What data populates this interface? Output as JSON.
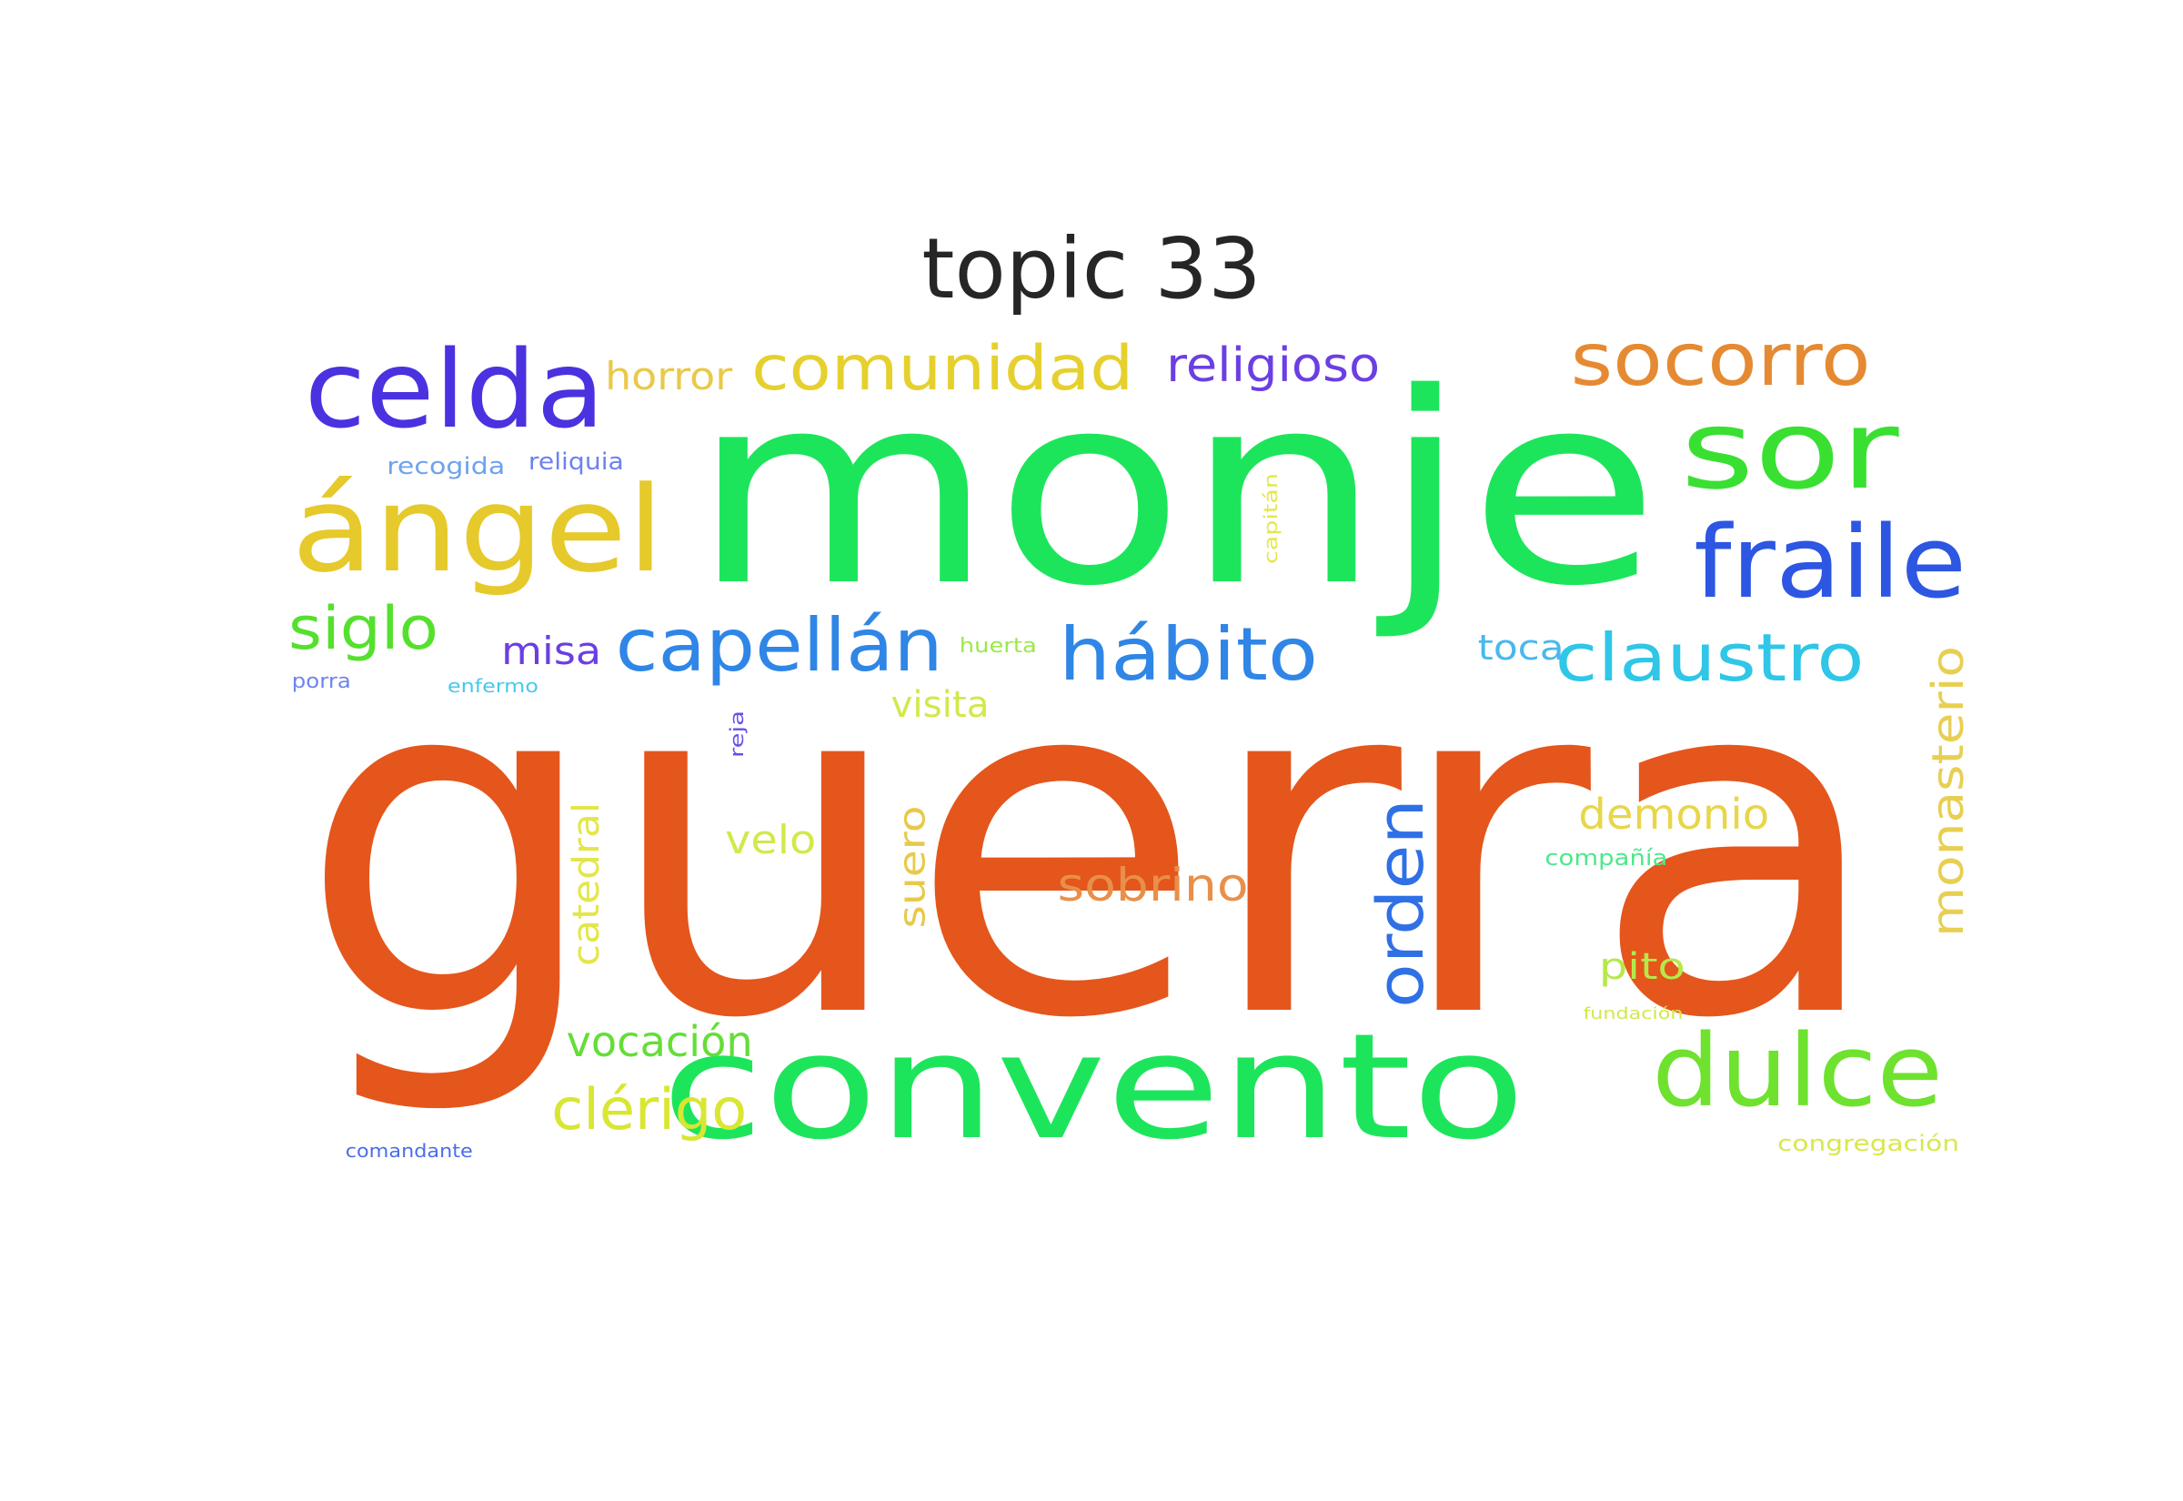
{
  "figure": {
    "title": "topic 33"
  },
  "wordcloud": {
    "words": [
      {
        "text": "guerra",
        "color": "#e4561c",
        "rotate": false
      },
      {
        "text": "monje",
        "color": "#1de55b",
        "rotate": false
      },
      {
        "text": "convento",
        "color": "#1de55b",
        "rotate": false
      },
      {
        "text": "celda",
        "color": "#4a32e0",
        "rotate": false
      },
      {
        "text": "ángel",
        "color": "#e6c92b",
        "rotate": false
      },
      {
        "text": "sor",
        "color": "#39e031",
        "rotate": false
      },
      {
        "text": "fraile",
        "color": "#2d56e3",
        "rotate": false
      },
      {
        "text": "socorro",
        "color": "#e58a32",
        "rotate": false
      },
      {
        "text": "dulce",
        "color": "#6ee22e",
        "rotate": false
      },
      {
        "text": "claustro",
        "color": "#2fc6e8",
        "rotate": false
      },
      {
        "text": "hábito",
        "color": "#2f86e6",
        "rotate": false
      },
      {
        "text": "capellán",
        "color": "#2f86e6",
        "rotate": false
      },
      {
        "text": "comunidad",
        "color": "#e6d02e",
        "rotate": false
      },
      {
        "text": "siglo",
        "color": "#55e02d",
        "rotate": false
      },
      {
        "text": "religioso",
        "color": "#6b3fe3",
        "rotate": false
      },
      {
        "text": "orden",
        "color": "#2f70e6",
        "rotate": true
      },
      {
        "text": "monasterio",
        "color": "#e8cf52",
        "rotate": true
      },
      {
        "text": "clérigo",
        "color": "#d9e632",
        "rotate": false
      },
      {
        "text": "sobrino",
        "color": "#e8904a",
        "rotate": false
      },
      {
        "text": "vocación",
        "color": "#63de37",
        "rotate": false
      },
      {
        "text": "demonio",
        "color": "#e8d64a",
        "rotate": false
      },
      {
        "text": "horror",
        "color": "#e8c94a",
        "rotate": false
      },
      {
        "text": "misa",
        "color": "#6b3fe3",
        "rotate": false
      },
      {
        "text": "toca",
        "color": "#49b8ee",
        "rotate": false
      },
      {
        "text": "velo",
        "color": "#d3e84a",
        "rotate": false
      },
      {
        "text": "visita",
        "color": "#d3e84a",
        "rotate": false
      },
      {
        "text": "pito",
        "color": "#b6e84a",
        "rotate": false
      },
      {
        "text": "catedral",
        "color": "#e3e64a",
        "rotate": true
      },
      {
        "text": "suero",
        "color": "#e8c94a",
        "rotate": true
      },
      {
        "text": "recogida",
        "color": "#6ea3ee",
        "rotate": false
      },
      {
        "text": "reliquia",
        "color": "#6e82ee",
        "rotate": false
      },
      {
        "text": "huerta",
        "color": "#9be84a",
        "rotate": false
      },
      {
        "text": "porra",
        "color": "#6e84ee",
        "rotate": false
      },
      {
        "text": "enfermo",
        "color": "#49c8ee",
        "rotate": false
      },
      {
        "text": "reja",
        "color": "#6a4fe8",
        "rotate": true
      },
      {
        "text": "capitán",
        "color": "#e3e84a",
        "rotate": true
      },
      {
        "text": "compañía",
        "color": "#4ee88a",
        "rotate": false
      },
      {
        "text": "fundación",
        "color": "#d3e84a",
        "rotate": false
      },
      {
        "text": "comandante",
        "color": "#4a6ee8",
        "rotate": false
      },
      {
        "text": "congregación",
        "color": "#d9e84a",
        "rotate": false
      }
    ]
  }
}
